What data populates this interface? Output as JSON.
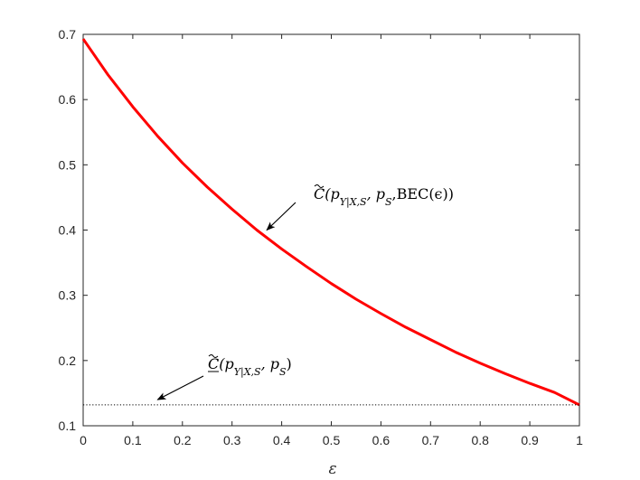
{
  "chart_data": {
    "type": "line",
    "title": "",
    "xlabel": "ε",
    "ylabel": "",
    "xlim": [
      0,
      1
    ],
    "ylim": [
      0.1,
      0.7
    ],
    "xticks": [
      "0",
      "0.1",
      "0.2",
      "0.3",
      "0.4",
      "0.5",
      "0.6",
      "0.7",
      "0.8",
      "0.9",
      "1"
    ],
    "yticks": [
      "0.1",
      "0.2",
      "0.3",
      "0.4",
      "0.5",
      "0.6",
      "0.7"
    ],
    "grid": false,
    "series": [
      {
        "color": "#ff0000",
        "style": "solid",
        "x": [
          0,
          0.05,
          0.1,
          0.15,
          0.2,
          0.25,
          0.3,
          0.35,
          0.4,
          0.45,
          0.5,
          0.55,
          0.6,
          0.65,
          0.7,
          0.75,
          0.8,
          0.85,
          0.9,
          0.95,
          1.0
        ],
        "y": [
          0.693,
          0.638,
          0.589,
          0.544,
          0.503,
          0.466,
          0.432,
          0.4,
          0.371,
          0.344,
          0.318,
          0.294,
          0.272,
          0.251,
          0.232,
          0.213,
          0.196,
          0.18,
          0.165,
          0.151,
          0.132
        ]
      },
      {
        "color": "#000000",
        "style": "dotted",
        "x": [
          0,
          1
        ],
        "y": [
          0.132,
          0.132
        ]
      }
    ],
    "annotations": [
      {
        "text_parts": [
          {
            "t": "C",
            "cls": "it",
            "tilde": true
          },
          {
            "t": "(p"
          },
          {
            "t": "Y|X,S",
            "sub": true
          },
          {
            "t": ", p"
          },
          {
            "t": "S",
            "sub": true
          },
          {
            "t": ",BEC(ϵ))"
          }
        ],
        "arrow_to": [
          0.37,
          0.4
        ]
      },
      {
        "text_parts": [
          {
            "t": "C",
            "cls": "it",
            "tilde": true,
            "underline": true
          },
          {
            "t": "(p"
          },
          {
            "t": "Y|X,S",
            "sub": true
          },
          {
            "t": ", p"
          },
          {
            "t": "S",
            "sub": true
          },
          {
            "t": ")"
          }
        ],
        "arrow_to": [
          0.15,
          0.14
        ]
      }
    ]
  }
}
